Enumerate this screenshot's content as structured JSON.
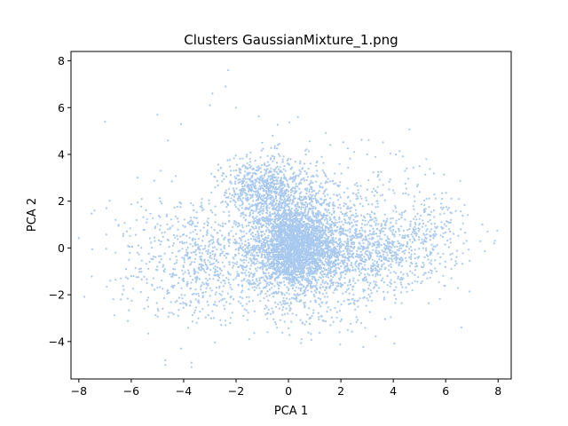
{
  "chart_data": {
    "type": "scatter",
    "title": "Clusters GaussianMixture_1.png",
    "xlabel": "PCA 1",
    "ylabel": "PCA 2",
    "xlim": [
      -8.3,
      8.5
    ],
    "ylim": [
      -5.6,
      8.4
    ],
    "x_ticks": [
      -8,
      -6,
      -4,
      -2,
      0,
      2,
      4,
      6,
      8
    ],
    "y_ticks": [
      -4,
      -2,
      0,
      2,
      4,
      6,
      8
    ],
    "grid": false,
    "legend": "none",
    "point_color": "#a9c9ee",
    "series": [
      {
        "points": [
          [
            -7.0,
            5.4
          ],
          [
            -6.95,
            1.7
          ],
          [
            -7.4,
            1.6
          ],
          [
            -6.6,
            1.2
          ],
          [
            -6.3,
            0.6
          ],
          [
            -6.6,
            -0.2
          ],
          [
            -6.2,
            -0.9
          ],
          [
            -6.4,
            -2.2
          ],
          [
            -6.8,
            -1.4
          ],
          [
            -6.6,
            -1.35
          ],
          [
            -6.4,
            -1.3
          ],
          [
            -6.2,
            -1.25
          ],
          [
            -6.0,
            -1.2
          ],
          [
            -5.8,
            -1.25
          ],
          [
            -5.6,
            -1.35
          ],
          [
            -5.4,
            -1.5
          ],
          [
            -5.2,
            -1.6
          ],
          [
            -5.0,
            -1.7
          ],
          [
            -4.8,
            -1.75
          ],
          [
            -4.6,
            -1.8
          ],
          [
            -4.4,
            -1.7
          ],
          [
            -4.2,
            -1.5
          ],
          [
            -4.0,
            -1.3
          ],
          [
            -3.8,
            -1.1
          ],
          [
            -3.6,
            -0.9
          ],
          [
            -3.4,
            -0.7
          ],
          [
            -3.2,
            -0.5
          ],
          [
            -3.0,
            -0.4
          ],
          [
            -2.8,
            -0.3
          ],
          [
            -2.6,
            -0.25
          ],
          [
            -5.0,
            5.7
          ],
          [
            -4.6,
            4.6
          ],
          [
            -4.1,
            5.3
          ],
          [
            -3.0,
            6.1
          ],
          [
            -2.9,
            6.6
          ],
          [
            -2.3,
            7.6
          ],
          [
            -2.4,
            6.9
          ],
          [
            -2.0,
            6.0
          ],
          [
            -4.7,
            -4.8
          ],
          [
            -4.7,
            -5.0
          ],
          [
            -3.7,
            -4.9
          ],
          [
            -3.7,
            -5.1
          ],
          [
            -1.5,
            -3.9
          ],
          [
            -0.8,
            -3.6
          ],
          [
            0.5,
            -3.9
          ],
          [
            6.6,
            -3.4
          ],
          [
            6.3,
            0.6
          ],
          [
            7.6,
            0.7
          ],
          [
            7.4,
            1.0
          ],
          [
            6.8,
            0.3
          ],
          [
            6.2,
            1.2
          ],
          [
            5.8,
            -0.4
          ],
          [
            5.2,
            -0.4
          ],
          [
            4.6,
            -0.2
          ],
          [
            4.2,
            0.2
          ],
          [
            3.8,
            0.4
          ],
          [
            3.4,
            0.5
          ],
          [
            5.0,
            0.8
          ],
          [
            5.6,
            0.9
          ],
          [
            4.8,
            2.2
          ],
          [
            5.0,
            3.5
          ],
          [
            4.1,
            4.0
          ],
          [
            3.0,
            4.0
          ],
          [
            2.5,
            4.1
          ],
          [
            1.6,
            4.4
          ],
          [
            1.1,
            3.7
          ],
          [
            -0.6,
            4.8
          ],
          [
            -1.0,
            4.5
          ],
          [
            -1.6,
            3.9
          ],
          [
            -2.2,
            3.3
          ],
          [
            -1.9,
            3.1
          ],
          [
            -2.5,
            3.2
          ],
          [
            -2.8,
            2.6
          ],
          [
            -3.3,
            2.1
          ],
          [
            -3.6,
            1.3
          ],
          [
            -4.1,
            1.9
          ],
          [
            -4.6,
            0.8
          ],
          [
            -5.1,
            0.3
          ],
          [
            -5.6,
            2.1
          ],
          [
            -5.3,
            -0.6
          ],
          [
            -4.8,
            -2.6
          ],
          [
            -4.2,
            -2.9
          ],
          [
            -3.5,
            -3.2
          ],
          [
            -2.9,
            -2.7
          ],
          [
            -2.4,
            -3.3
          ],
          [
            -1.6,
            -2.1
          ],
          [
            -0.9,
            -2.6
          ],
          [
            -0.4,
            -2.4
          ],
          [
            0.9,
            -2.9
          ],
          [
            1.6,
            -3.3
          ],
          [
            2.3,
            -2.4
          ],
          [
            2.9,
            -2.1
          ],
          [
            3.6,
            -1.3
          ],
          [
            4.3,
            -1.9
          ],
          [
            5.3,
            -1.3
          ],
          [
            -1.2,
            1.2
          ],
          [
            -0.8,
            2.1
          ],
          [
            -0.3,
            2.7
          ],
          [
            0.3,
            3.1
          ],
          [
            0.8,
            2.5
          ],
          [
            1.3,
            1.9
          ],
          [
            1.8,
            1.2
          ],
          [
            -1.0,
            -0.8
          ],
          [
            -0.5,
            -1.3
          ],
          [
            0.2,
            -1.6
          ],
          [
            0.7,
            -1.1
          ],
          [
            1.2,
            -0.6
          ],
          [
            -1.6,
            -0.4
          ],
          [
            -2.0,
            0.6
          ],
          [
            2.4,
            0.2
          ]
        ]
      }
    ]
  }
}
